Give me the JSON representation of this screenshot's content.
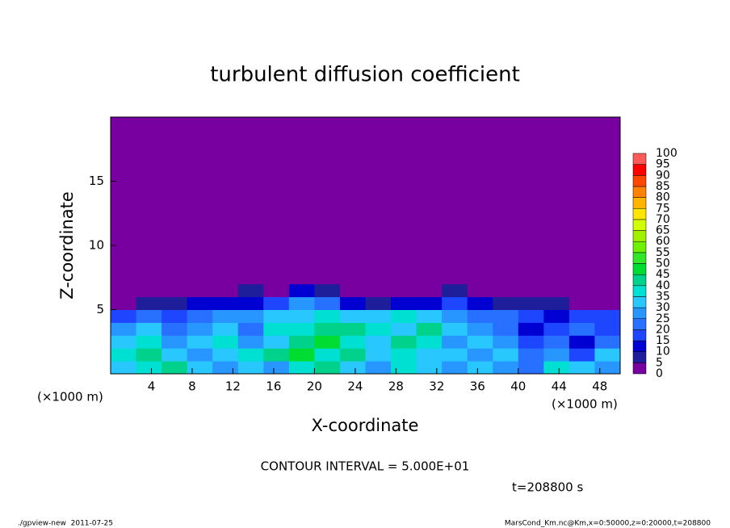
{
  "chart_data": {
    "type": "heatmap",
    "title": "turbulent diffusion coefficient",
    "x_label": "X-coordinate",
    "y_label": "Z-coordinate",
    "x_unit": "(×1000 m)",
    "y_unit": "(×1000 m)",
    "xlim": [
      0,
      50
    ],
    "ylim": [
      0,
      20
    ],
    "xticks": [
      4,
      8,
      12,
      16,
      20,
      24,
      28,
      32,
      36,
      40,
      44,
      48
    ],
    "yticks": [
      5,
      10,
      15
    ],
    "x_edges": [
      0,
      2.5,
      5,
      7.5,
      10,
      12.5,
      15,
      17.5,
      20,
      22.5,
      25,
      27.5,
      30,
      32.5,
      35,
      37.5,
      40,
      42.5,
      45,
      47.5,
      50
    ],
    "z_edges": [
      0,
      1,
      2,
      3,
      4,
      5,
      6,
      7,
      20
    ],
    "values": [
      [
        30,
        35,
        40,
        30,
        25,
        30,
        25,
        35,
        40,
        30,
        25,
        35,
        30,
        25,
        30,
        25,
        20,
        35,
        30,
        25
      ],
      [
        35,
        40,
        30,
        25,
        30,
        35,
        40,
        45,
        35,
        40,
        30,
        35,
        30,
        30,
        25,
        30,
        20,
        25,
        15,
        30
      ],
      [
        30,
        35,
        25,
        30,
        35,
        25,
        30,
        40,
        45,
        35,
        30,
        40,
        35,
        25,
        30,
        25,
        15,
        20,
        10,
        20
      ],
      [
        25,
        30,
        20,
        25,
        30,
        20,
        35,
        35,
        40,
        40,
        35,
        30,
        40,
        30,
        25,
        20,
        10,
        15,
        20,
        15
      ],
      [
        15,
        20,
        15,
        20,
        25,
        25,
        30,
        30,
        35,
        30,
        30,
        35,
        30,
        25,
        20,
        20,
        15,
        10,
        15,
        15
      ],
      [
        0,
        5,
        5,
        10,
        10,
        10,
        15,
        25,
        20,
        10,
        5,
        10,
        10,
        15,
        10,
        5,
        5,
        5,
        0,
        0
      ],
      [
        0,
        0,
        0,
        0,
        0,
        5,
        0,
        10,
        5,
        0,
        0,
        0,
        0,
        5,
        0,
        0,
        0,
        0,
        0,
        0
      ],
      [
        0,
        0,
        0,
        0,
        0,
        0,
        0,
        0,
        0,
        0,
        0,
        0,
        0,
        0,
        0,
        0,
        0,
        0,
        0,
        0
      ]
    ],
    "levels": [
      0,
      5,
      10,
      15,
      20,
      25,
      30,
      35,
      40,
      45,
      50,
      55,
      60,
      65,
      70,
      75,
      80,
      85,
      90,
      95,
      100
    ],
    "colors": [
      "#7800a0",
      "#1e1e9a",
      "#0000d2",
      "#1e46ff",
      "#2870ff",
      "#2896ff",
      "#28c8ff",
      "#00e0d2",
      "#00d28c",
      "#00dc32",
      "#32e628",
      "#6ef000",
      "#a0f000",
      "#d2ff00",
      "#ffe600",
      "#ffb400",
      "#ff8200",
      "#ff4600",
      "#ff0000",
      "#ff5a5a"
    ],
    "annotations": [
      "CONTOUR INTERVAL = 5.000E+01",
      "t=208800 s"
    ],
    "footer_left": "./gpview-new  2011-07-25",
    "footer_right": "MarsCond_Km.nc@Km,x=0:50000,z=0:20000,t=208800"
  }
}
